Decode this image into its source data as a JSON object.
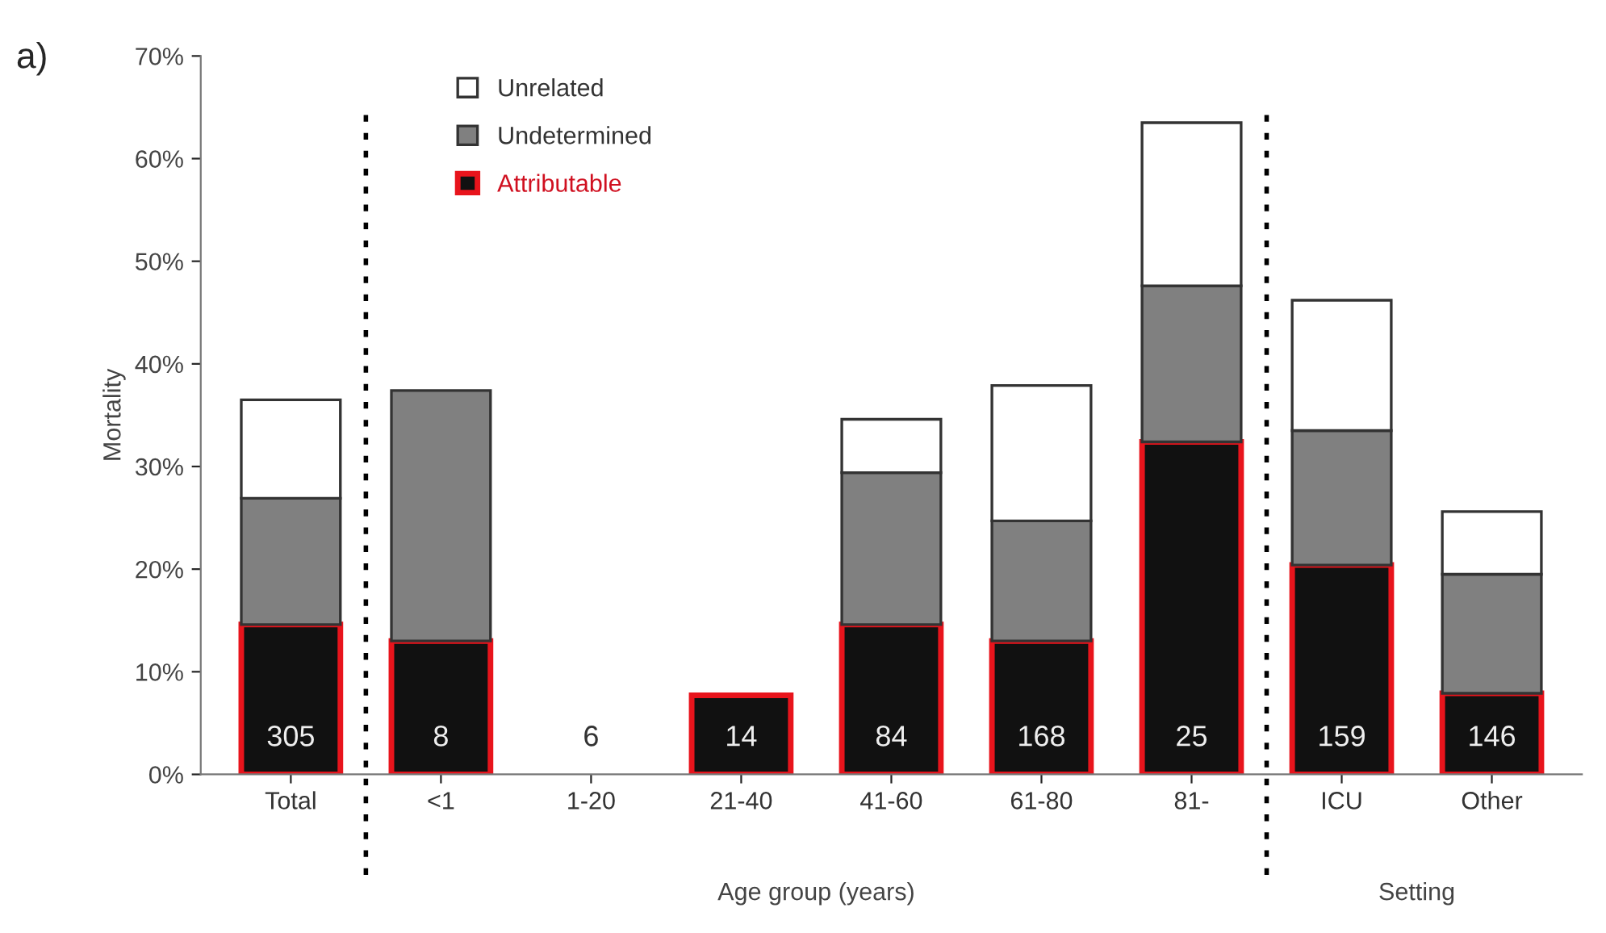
{
  "chart_data": {
    "type": "bar",
    "stacked": true,
    "title": "a)",
    "ylabel": "Mortality",
    "xlabel": "Age group (years)",
    "categories": [
      "Total",
      "<1",
      "1-20",
      "21-40",
      "41-60",
      "61-80",
      "81-",
      "ICU",
      "Other"
    ],
    "series": [
      {
        "name": "Attributable",
        "color": "#111111",
        "values": [
          14.6,
          13.0,
          0,
          7.7,
          14.6,
          13.0,
          32.4,
          20.4,
          7.9
        ]
      },
      {
        "name": "Undetermined",
        "color": "#808080",
        "values": [
          12.3,
          24.4,
          0,
          0,
          14.8,
          11.7,
          15.2,
          13.1,
          11.6
        ]
      },
      {
        "name": "Unrelated",
        "color": "#ffffff",
        "values": [
          9.6,
          0,
          0,
          0,
          5.2,
          13.2,
          15.9,
          12.7,
          6.1
        ]
      }
    ],
    "ylim": [
      0,
      70
    ],
    "yticks": [
      {
        "value": 0,
        "label": "0%"
      },
      {
        "value": 10,
        "label": "10%"
      },
      {
        "value": 20,
        "label": "20%"
      },
      {
        "value": 30,
        "label": "30%"
      },
      {
        "value": 40,
        "label": "40%"
      },
      {
        "value": 50,
        "label": "50%"
      },
      {
        "value": 60,
        "label": "60%"
      },
      {
        "value": 70,
        "label": "70%"
      }
    ],
    "annotations": [
      "305",
      "8",
      "6",
      "14",
      "84",
      "168",
      "25",
      "159",
      "146",
      "Setting"
    ],
    "legend": "top left",
    "grid": false
  }
}
